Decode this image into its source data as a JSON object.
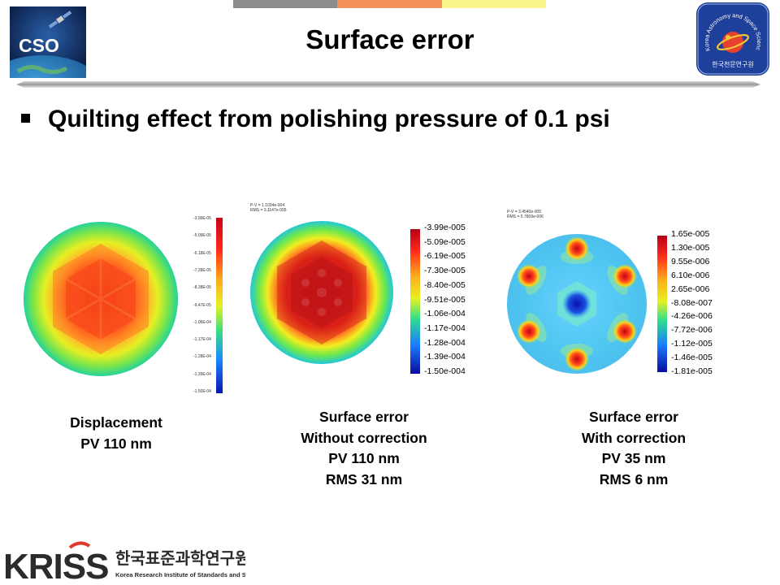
{
  "header": {
    "title": "Surface error",
    "left_logo_text": "CSO",
    "right_logo_text": "Korea Astronomy and Space Science Institute",
    "right_logo_korean": "한국천문연구원",
    "bar_colors": [
      "#8c8c8c",
      "#f5925a",
      "#fbf58a"
    ]
  },
  "main": {
    "bullet": "Quilting effect from polishing pressure of 0.1 psi"
  },
  "plots": [
    {
      "name": "displacement",
      "colorbar_labels": [
        "-3.99E-05",
        "-5.09E-05",
        "-6.18E-05",
        "-7.28E-05",
        "-8.38E-05",
        "-9.47E-05",
        "-1.06E-04",
        "-1.17E-04",
        "-1.28E-04",
        "-1.39E-04",
        "-1.50E-04"
      ],
      "caption": [
        "Displacement",
        "PV 110 nm"
      ]
    },
    {
      "name": "surface-error-without-correction",
      "note": [
        "P-V = 1.1034e-004",
        "RMS = 3.1147e-005"
      ],
      "colorbar_labels": [
        "-3.99e-005",
        "-5.09e-005",
        "-6.19e-005",
        "-7.30e-005",
        "-8.40e-005",
        "-9.51e-005",
        "-1.06e-004",
        "-1.17e-004",
        "-1.28e-004",
        "-1.39e-004",
        "-1.50e-004"
      ],
      "caption": [
        "Surface error",
        "Without correction",
        "PV 110 nm",
        "RMS 31 nm"
      ]
    },
    {
      "name": "surface-error-with-correction",
      "note": [
        "P-V = 3.4540e-005",
        "RMS = 5.7809e-006"
      ],
      "colorbar_labels": [
        "1.65e-005",
        "1.30e-005",
        "9.55e-006",
        "6.10e-006",
        "2.65e-006",
        "-8.08e-007",
        "-4.26e-006",
        "-7.72e-006",
        "-1.12e-005",
        "-1.46e-005",
        "-1.81e-005"
      ],
      "caption": [
        "Surface error",
        "With correction",
        "PV 35 nm",
        "RMS 6 nm"
      ]
    }
  ],
  "footer": {
    "logo_text": "KRISS",
    "korean": "한국표준과학연구원",
    "english": "Korea Research Institute of Standards and Science"
  }
}
